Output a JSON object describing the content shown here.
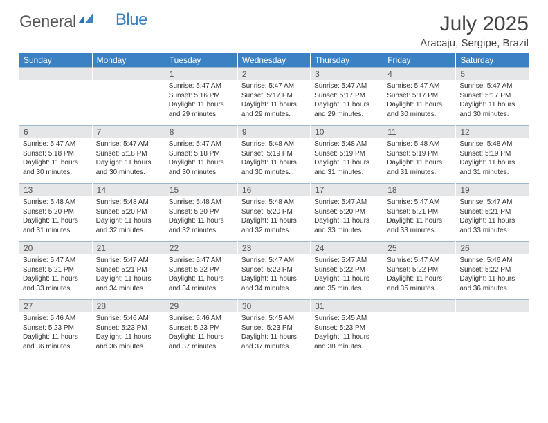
{
  "brand": {
    "part1": "General",
    "part2": "Blue"
  },
  "header": {
    "month_title": "July 2025",
    "location": "Aracaju, Sergipe, Brazil"
  },
  "colors": {
    "header_bg": "#3B82C4",
    "daynum_bg": "#e4e6e8",
    "rule": "#9fb7cc"
  },
  "day_labels": [
    "Sunday",
    "Monday",
    "Tuesday",
    "Wednesday",
    "Thursday",
    "Friday",
    "Saturday"
  ],
  "weeks": [
    [
      {
        "n": "",
        "sunrise": "",
        "sunset": "",
        "daylight": ""
      },
      {
        "n": "",
        "sunrise": "",
        "sunset": "",
        "daylight": ""
      },
      {
        "n": "1",
        "sunrise": "Sunrise: 5:47 AM",
        "sunset": "Sunset: 5:16 PM",
        "daylight": "Daylight: 11 hours and 29 minutes."
      },
      {
        "n": "2",
        "sunrise": "Sunrise: 5:47 AM",
        "sunset": "Sunset: 5:17 PM",
        "daylight": "Daylight: 11 hours and 29 minutes."
      },
      {
        "n": "3",
        "sunrise": "Sunrise: 5:47 AM",
        "sunset": "Sunset: 5:17 PM",
        "daylight": "Daylight: 11 hours and 29 minutes."
      },
      {
        "n": "4",
        "sunrise": "Sunrise: 5:47 AM",
        "sunset": "Sunset: 5:17 PM",
        "daylight": "Daylight: 11 hours and 30 minutes."
      },
      {
        "n": "5",
        "sunrise": "Sunrise: 5:47 AM",
        "sunset": "Sunset: 5:17 PM",
        "daylight": "Daylight: 11 hours and 30 minutes."
      }
    ],
    [
      {
        "n": "6",
        "sunrise": "Sunrise: 5:47 AM",
        "sunset": "Sunset: 5:18 PM",
        "daylight": "Daylight: 11 hours and 30 minutes."
      },
      {
        "n": "7",
        "sunrise": "Sunrise: 5:47 AM",
        "sunset": "Sunset: 5:18 PM",
        "daylight": "Daylight: 11 hours and 30 minutes."
      },
      {
        "n": "8",
        "sunrise": "Sunrise: 5:47 AM",
        "sunset": "Sunset: 5:18 PM",
        "daylight": "Daylight: 11 hours and 30 minutes."
      },
      {
        "n": "9",
        "sunrise": "Sunrise: 5:48 AM",
        "sunset": "Sunset: 5:19 PM",
        "daylight": "Daylight: 11 hours and 30 minutes."
      },
      {
        "n": "10",
        "sunrise": "Sunrise: 5:48 AM",
        "sunset": "Sunset: 5:19 PM",
        "daylight": "Daylight: 11 hours and 31 minutes."
      },
      {
        "n": "11",
        "sunrise": "Sunrise: 5:48 AM",
        "sunset": "Sunset: 5:19 PM",
        "daylight": "Daylight: 11 hours and 31 minutes."
      },
      {
        "n": "12",
        "sunrise": "Sunrise: 5:48 AM",
        "sunset": "Sunset: 5:19 PM",
        "daylight": "Daylight: 11 hours and 31 minutes."
      }
    ],
    [
      {
        "n": "13",
        "sunrise": "Sunrise: 5:48 AM",
        "sunset": "Sunset: 5:20 PM",
        "daylight": "Daylight: 11 hours and 31 minutes."
      },
      {
        "n": "14",
        "sunrise": "Sunrise: 5:48 AM",
        "sunset": "Sunset: 5:20 PM",
        "daylight": "Daylight: 11 hours and 32 minutes."
      },
      {
        "n": "15",
        "sunrise": "Sunrise: 5:48 AM",
        "sunset": "Sunset: 5:20 PM",
        "daylight": "Daylight: 11 hours and 32 minutes."
      },
      {
        "n": "16",
        "sunrise": "Sunrise: 5:48 AM",
        "sunset": "Sunset: 5:20 PM",
        "daylight": "Daylight: 11 hours and 32 minutes."
      },
      {
        "n": "17",
        "sunrise": "Sunrise: 5:47 AM",
        "sunset": "Sunset: 5:20 PM",
        "daylight": "Daylight: 11 hours and 33 minutes."
      },
      {
        "n": "18",
        "sunrise": "Sunrise: 5:47 AM",
        "sunset": "Sunset: 5:21 PM",
        "daylight": "Daylight: 11 hours and 33 minutes."
      },
      {
        "n": "19",
        "sunrise": "Sunrise: 5:47 AM",
        "sunset": "Sunset: 5:21 PM",
        "daylight": "Daylight: 11 hours and 33 minutes."
      }
    ],
    [
      {
        "n": "20",
        "sunrise": "Sunrise: 5:47 AM",
        "sunset": "Sunset: 5:21 PM",
        "daylight": "Daylight: 11 hours and 33 minutes."
      },
      {
        "n": "21",
        "sunrise": "Sunrise: 5:47 AM",
        "sunset": "Sunset: 5:21 PM",
        "daylight": "Daylight: 11 hours and 34 minutes."
      },
      {
        "n": "22",
        "sunrise": "Sunrise: 5:47 AM",
        "sunset": "Sunset: 5:22 PM",
        "daylight": "Daylight: 11 hours and 34 minutes."
      },
      {
        "n": "23",
        "sunrise": "Sunrise: 5:47 AM",
        "sunset": "Sunset: 5:22 PM",
        "daylight": "Daylight: 11 hours and 34 minutes."
      },
      {
        "n": "24",
        "sunrise": "Sunrise: 5:47 AM",
        "sunset": "Sunset: 5:22 PM",
        "daylight": "Daylight: 11 hours and 35 minutes."
      },
      {
        "n": "25",
        "sunrise": "Sunrise: 5:47 AM",
        "sunset": "Sunset: 5:22 PM",
        "daylight": "Daylight: 11 hours and 35 minutes."
      },
      {
        "n": "26",
        "sunrise": "Sunrise: 5:46 AM",
        "sunset": "Sunset: 5:22 PM",
        "daylight": "Daylight: 11 hours and 36 minutes."
      }
    ],
    [
      {
        "n": "27",
        "sunrise": "Sunrise: 5:46 AM",
        "sunset": "Sunset: 5:23 PM",
        "daylight": "Daylight: 11 hours and 36 minutes."
      },
      {
        "n": "28",
        "sunrise": "Sunrise: 5:46 AM",
        "sunset": "Sunset: 5:23 PM",
        "daylight": "Daylight: 11 hours and 36 minutes."
      },
      {
        "n": "29",
        "sunrise": "Sunrise: 5:46 AM",
        "sunset": "Sunset: 5:23 PM",
        "daylight": "Daylight: 11 hours and 37 minutes."
      },
      {
        "n": "30",
        "sunrise": "Sunrise: 5:45 AM",
        "sunset": "Sunset: 5:23 PM",
        "daylight": "Daylight: 11 hours and 37 minutes."
      },
      {
        "n": "31",
        "sunrise": "Sunrise: 5:45 AM",
        "sunset": "Sunset: 5:23 PM",
        "daylight": "Daylight: 11 hours and 38 minutes."
      },
      {
        "n": "",
        "sunrise": "",
        "sunset": "",
        "daylight": ""
      },
      {
        "n": "",
        "sunrise": "",
        "sunset": "",
        "daylight": ""
      }
    ]
  ]
}
